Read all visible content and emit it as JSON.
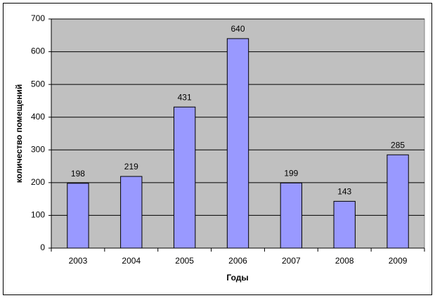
{
  "chart_data": {
    "type": "bar",
    "x_label": "Годы",
    "y_label": "количество помещений",
    "categories": [
      "2003",
      "2004",
      "2005",
      "2006",
      "2007",
      "2008",
      "2009"
    ],
    "values": [
      198,
      219,
      431,
      640,
      199,
      143,
      285
    ],
    "color": "#9999ff",
    "plot_color": "#c0c0c0",
    "ylim": [
      0,
      700
    ],
    "yticks": [
      0,
      100,
      200,
      300,
      400,
      500,
      600,
      700
    ],
    "grid": true,
    "data_labels": true
  }
}
